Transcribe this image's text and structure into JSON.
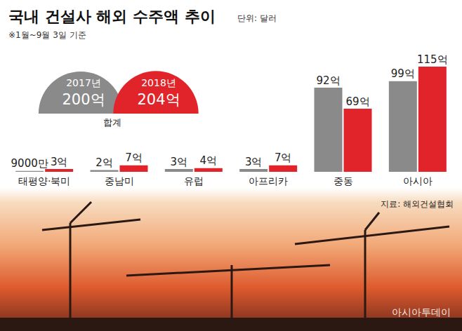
{
  "chart_data": {
    "type": "bar",
    "title": "국내 건설사 해외 수주액 추이",
    "unit": "단위: 달러",
    "subtitle": "※1월~9월 3일 기준",
    "annotations": [
      "합계"
    ],
    "source": "지료: 해외건설협회",
    "credit": "아시아투데이",
    "categories": [
      "태평양·북미",
      "중남미",
      "유럽",
      "아프리카",
      "중동",
      "아시아"
    ],
    "series": [
      {
        "name": "2017년",
        "color": "#8a8a8a",
        "values": [
          0.9,
          2,
          3,
          3,
          92,
          99
        ],
        "value_labels": [
          "9000만",
          "2억",
          "3억",
          "3억",
          "92억",
          "99억"
        ],
        "total": 200,
        "total_label": "200억"
      },
      {
        "name": "2018년",
        "color": "#e0242a",
        "values": [
          3,
          7,
          4,
          7,
          69,
          115
        ],
        "value_labels": [
          "3억",
          "7억",
          "4억",
          "7억",
          "69억",
          "115억"
        ],
        "total": 204,
        "total_label": "204억"
      }
    ],
    "ylim": [
      0,
      115
    ],
    "grid": false,
    "data_labels": true,
    "tick_labels": "x"
  }
}
